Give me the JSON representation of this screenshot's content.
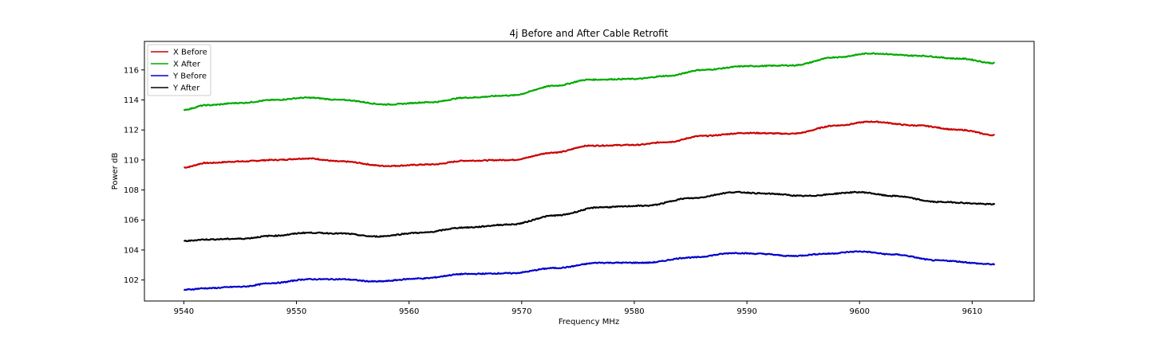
{
  "chart_data": {
    "type": "line",
    "title": "4j Before and After Cable Retrofit",
    "xlabel": "Frequency MHz",
    "ylabel": "Power dB",
    "xlim": [
      9536.5,
      9615.5
    ],
    "ylim": [
      100.6,
      117.9
    ],
    "xticks": [
      9540,
      9550,
      9560,
      9570,
      9580,
      9590,
      9600,
      9610
    ],
    "yticks": [
      102,
      104,
      106,
      108,
      110,
      112,
      114,
      116
    ],
    "grid": false,
    "legend": "top-left",
    "series": [
      {
        "name": "X Before",
        "color": "#cc0000",
        "x": [
          9540,
          9542,
          9545,
          9548,
          9551,
          9554,
          9558,
          9562,
          9565,
          9569,
          9573,
          9576,
          9580,
          9583,
          9586,
          9590,
          9594,
          9598,
          9601,
          9605,
          9609,
          9612
        ],
        "y": [
          109.5,
          109.8,
          109.9,
          110.0,
          110.1,
          109.9,
          109.6,
          109.7,
          109.95,
          110.0,
          110.5,
          110.95,
          111.0,
          111.2,
          111.6,
          111.8,
          111.75,
          112.3,
          112.55,
          112.3,
          112.0,
          111.65
        ]
      },
      {
        "name": "X After",
        "color": "#00aa00",
        "x": [
          9540,
          9542,
          9545,
          9548,
          9551,
          9554,
          9558,
          9562,
          9565,
          9569,
          9573,
          9576,
          9580,
          9583,
          9586,
          9590,
          9594,
          9598,
          9601,
          9605,
          9609,
          9612
        ],
        "y": [
          113.35,
          113.65,
          113.8,
          114.0,
          114.15,
          114.0,
          113.7,
          113.85,
          114.15,
          114.3,
          114.95,
          115.35,
          115.4,
          115.6,
          116.0,
          116.25,
          116.3,
          116.85,
          117.1,
          116.95,
          116.75,
          116.45
        ]
      },
      {
        "name": "Y Before",
        "color": "#0000cc",
        "x": [
          9540,
          9542,
          9545,
          9548,
          9551,
          9554,
          9557,
          9561,
          9565,
          9569,
          9573,
          9577,
          9581,
          9585,
          9589,
          9591,
          9594,
          9597,
          9600,
          9603,
          9607,
          9612
        ],
        "y": [
          101.35,
          101.45,
          101.55,
          101.8,
          102.05,
          102.05,
          101.9,
          102.1,
          102.4,
          102.45,
          102.8,
          103.15,
          103.15,
          103.5,
          103.8,
          103.75,
          103.6,
          103.75,
          103.9,
          103.7,
          103.3,
          103.05
        ]
      },
      {
        "name": "Y After",
        "color": "#000000",
        "x": [
          9540,
          9542,
          9545,
          9548,
          9551,
          9554,
          9557,
          9561,
          9565,
          9569,
          9573,
          9577,
          9581,
          9585,
          9589,
          9592,
          9595,
          9600,
          9603,
          9607,
          9612
        ],
        "y": [
          104.6,
          104.7,
          104.75,
          104.95,
          105.15,
          105.1,
          104.9,
          105.15,
          105.5,
          105.7,
          106.3,
          106.85,
          106.95,
          107.45,
          107.85,
          107.75,
          107.6,
          107.85,
          107.6,
          107.2,
          107.05
        ]
      }
    ]
  }
}
